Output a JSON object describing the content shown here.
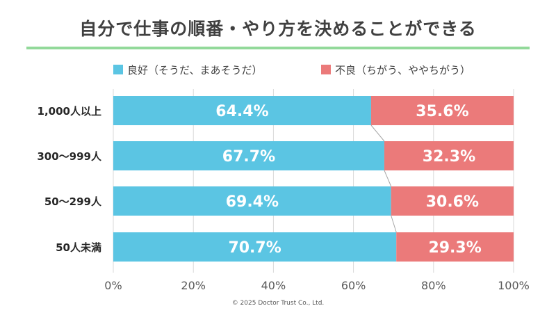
{
  "chart_data": {
    "type": "bar",
    "orientation": "horizontal",
    "stacked": true,
    "title": "自分で仕事の順番・やり方を決めることができる",
    "categories": [
      "1,000人以上",
      "300～999人",
      "50～299人",
      "50人未満"
    ],
    "series": [
      {
        "name": "良好（そうだ、まあそうだ）",
        "values": [
          64.4,
          67.7,
          69.4,
          70.7
        ],
        "color": "#5bc5e3"
      },
      {
        "name": "不良（ちがう、ややちがう）",
        "values": [
          35.6,
          32.3,
          30.6,
          29.3
        ],
        "color": "#eb7a7a"
      }
    ],
    "value_labels": [
      [
        "64.4%",
        "67.7%",
        "69.4%",
        "70.7%"
      ],
      [
        "35.6%",
        "32.3%",
        "30.6%",
        "29.3%"
      ]
    ],
    "xlim": [
      0,
      100
    ],
    "x_ticks": [
      "0%",
      "20%",
      "40%",
      "60%",
      "80%",
      "100%"
    ],
    "legend_position": "top",
    "grid": true
  },
  "footer": {
    "copyright": "©  2025 Doctor Trust Co., Ltd."
  }
}
